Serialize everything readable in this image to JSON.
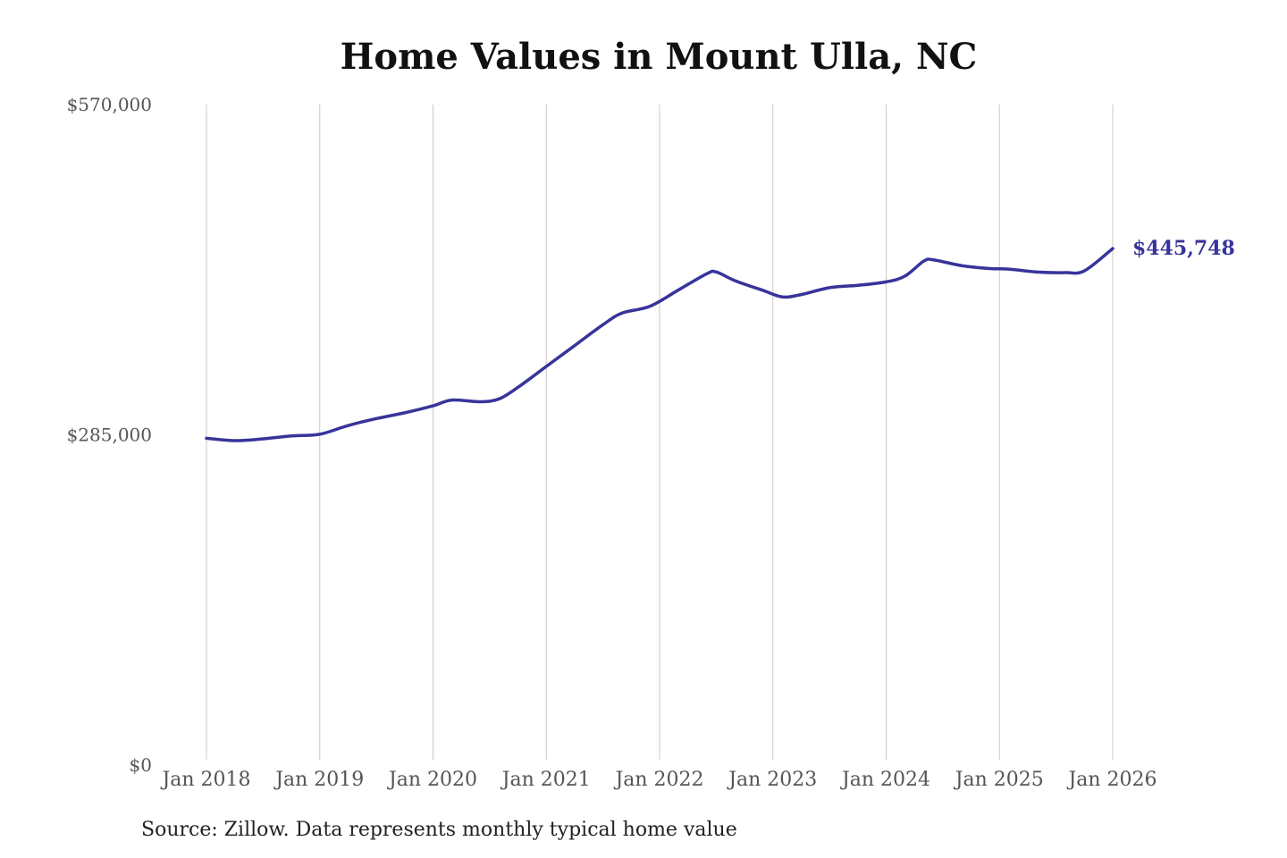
{
  "chart_data": {
    "type": "line",
    "title": "Home Values in Mount Ulla, NC",
    "source": "Source: Zillow. Data represents monthly typical home value",
    "ylim": [
      0,
      570000
    ],
    "yticks": [
      {
        "value": 0,
        "label": "$0"
      },
      {
        "value": 285000,
        "label": "$285,000"
      },
      {
        "value": 570000,
        "label": "$570,000"
      }
    ],
    "xticks": [
      {
        "value": "2018-01",
        "label": "Jan 2018"
      },
      {
        "value": "2019-01",
        "label": "Jan 2019"
      },
      {
        "value": "2020-01",
        "label": "Jan 2020"
      },
      {
        "value": "2021-01",
        "label": "Jan 2021"
      },
      {
        "value": "2022-01",
        "label": "Jan 2022"
      },
      {
        "value": "2023-01",
        "label": "Jan 2023"
      },
      {
        "value": "2024-01",
        "label": "Jan 2024"
      },
      {
        "value": "2025-01",
        "label": "Jan 2025"
      },
      {
        "value": "2026-01",
        "label": "Jan 2026"
      }
    ],
    "grid": "vertical",
    "line_color": "#37349a",
    "end_label": "$445,748",
    "series": [
      {
        "x": [
          "2018-01",
          "2018-04",
          "2018-07",
          "2018-10",
          "2019-01",
          "2019-04",
          "2019-07",
          "2019-10",
          "2020-01",
          "2020-03",
          "2020-06",
          "2020-08",
          "2020-10",
          "2021-01",
          "2021-04",
          "2021-07",
          "2021-09",
          "2021-12",
          "2022-03",
          "2022-06",
          "2022-07",
          "2022-09",
          "2022-12",
          "2023-02",
          "2023-04",
          "2023-07",
          "2023-10",
          "2024-01",
          "2024-03",
          "2024-05",
          "2024-06",
          "2024-09",
          "2024-12",
          "2025-02",
          "2025-05",
          "2025-08",
          "2025-10",
          "2026-01"
        ],
        "y": [
          282000,
          280000,
          281500,
          284000,
          285500,
          293000,
          299000,
          304000,
          310000,
          315000,
          313500,
          316000,
          326000,
          344000,
          362000,
          380000,
          390000,
          396000,
          410000,
          424000,
          425500,
          418000,
          409500,
          404000,
          406000,
          412000,
          414000,
          417000,
          422000,
          435000,
          436000,
          431000,
          428500,
          428000,
          425500,
          425000,
          426500,
          445748
        ]
      }
    ]
  }
}
